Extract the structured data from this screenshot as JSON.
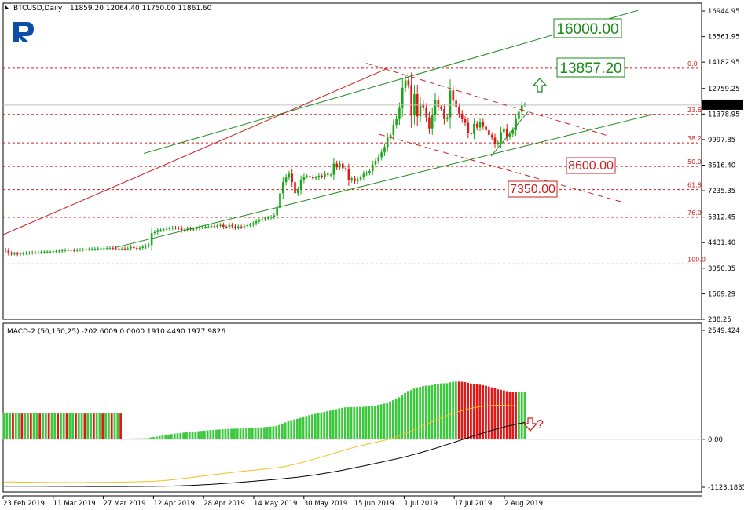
{
  "chart_data": [
    {
      "type": "candlestick",
      "title": "BTCUSD,Daily",
      "ohlc": "11859.20 12064.40 11750.00 11861.60",
      "current_price": "11861.60",
      "y_tick_labels": [
        "16944.95",
        "15561.95",
        "14182.95",
        "12759.25",
        "11378.95",
        "9997.85",
        "8616.40",
        "7235.35",
        "5812.45",
        "4431.40",
        "3050.35",
        "1669.29",
        "288.25"
      ],
      "y_ticks": [
        16944.95,
        15561.95,
        14182.95,
        12759.25,
        11378.95,
        9997.85,
        8616.4,
        7235.35,
        5812.45,
        4431.4,
        3050.35,
        1669.29,
        288.25
      ],
      "ylim": [
        288.25,
        16944.95
      ],
      "x_tick_labels": [
        "23 Feb 2019",
        "11 Mar 2019",
        "27 Mar 2019",
        "12 Apr 2019",
        "28 Apr 2019",
        "14 May 2019",
        "30 May 2019",
        "15 Jun 2019",
        "1 Jul 2019",
        "17 Jul 2019",
        "2 Aug 2019"
      ],
      "fib_levels": [
        {
          "label": "0.0",
          "price": 13857.2
        },
        {
          "label": "23.6",
          "price": 11360
        },
        {
          "label": "38.2",
          "price": 9820
        },
        {
          "label": "50.0",
          "price": 8550
        },
        {
          "label": "61.8",
          "price": 7300
        },
        {
          "label": "76.0",
          "price": 5800
        },
        {
          "label": "100.0",
          "price": 3280
        }
      ],
      "price_labels": [
        {
          "text": "16000.00",
          "color": "#1a8a1a"
        },
        {
          "text": "13857.20",
          "color": "#1a8a1a"
        },
        {
          "text": "8600.00",
          "color": "#cc1f1f"
        },
        {
          "text": "7350.00",
          "color": "#cc1f1f"
        }
      ],
      "closes": [
        4000,
        3870,
        3830,
        3840,
        3810,
        3830,
        3850,
        3870,
        3880,
        3900,
        3890,
        3910,
        3920,
        3930,
        3940,
        3940,
        3960,
        3980,
        3990,
        4010,
        4030,
        4040,
        4030,
        4020,
        4040,
        4050,
        4060,
        4080,
        4080,
        4090,
        4100,
        4110,
        4120,
        4130,
        4140,
        4150,
        4130,
        4110,
        4100,
        4110,
        4100,
        4120,
        4200,
        4140,
        4100,
        4150,
        4210,
        4260,
        4300,
        4950,
        5000,
        5100,
        5120,
        5140,
        5180,
        5200,
        5240,
        5230,
        5220,
        5100,
        5130,
        5190,
        5160,
        5180,
        5210,
        5250,
        5270,
        5290,
        5300,
        5320,
        5290,
        5360,
        5390,
        5290,
        5280,
        5390,
        5300,
        5240,
        5300,
        5270,
        5320,
        5380,
        5400,
        5480,
        5580,
        5630,
        5700,
        5750,
        5780,
        5820,
        5900,
        6300,
        7100,
        7700,
        7950,
        8150,
        7700,
        7100,
        7300,
        7800,
        8000,
        8030,
        7990,
        7900,
        7950,
        8050,
        8000,
        8150,
        8090,
        8100,
        8700,
        8500,
        8700,
        8450,
        8400,
        7800,
        7900,
        7750,
        7850,
        7950,
        8150,
        8200,
        8300,
        8650,
        8850,
        9050,
        9300,
        9600,
        10100,
        10250,
        10800,
        11100,
        11700,
        12800,
        13200,
        12950,
        11300,
        12450,
        11250,
        11950,
        11700,
        11200,
        10600,
        11350,
        12150,
        11750,
        11650,
        11100,
        11200,
        12650,
        12100,
        11750,
        11400,
        11100,
        10900,
        10350,
        10300,
        10850,
        10650,
        10950,
        10700,
        10500,
        10250,
        10100,
        9750,
        9850,
        10400,
        10600,
        10150,
        10300,
        10500,
        11100,
        11500,
        11850,
        11900
      ],
      "fib_swing": {
        "low": 3280,
        "high": 13857.2
      }
    },
    {
      "type": "bar+line",
      "title": "MACD-2 (50,150,25) -202.6009 0.0000 1910.4490 1977.9826",
      "y_tick_labels": [
        "2549.424",
        "0.00",
        "-1123.1835"
      ],
      "y_ticks": [
        2549.424,
        0,
        -1123.1835
      ],
      "ylim": [
        -1123.1835,
        2549.424
      ],
      "histogram_colors": {
        "up": "#3cc83c",
        "down": "#e01818"
      },
      "signal_color": "#f0c020",
      "macd_line_color": "#000000",
      "annotation": "?"
    }
  ]
}
